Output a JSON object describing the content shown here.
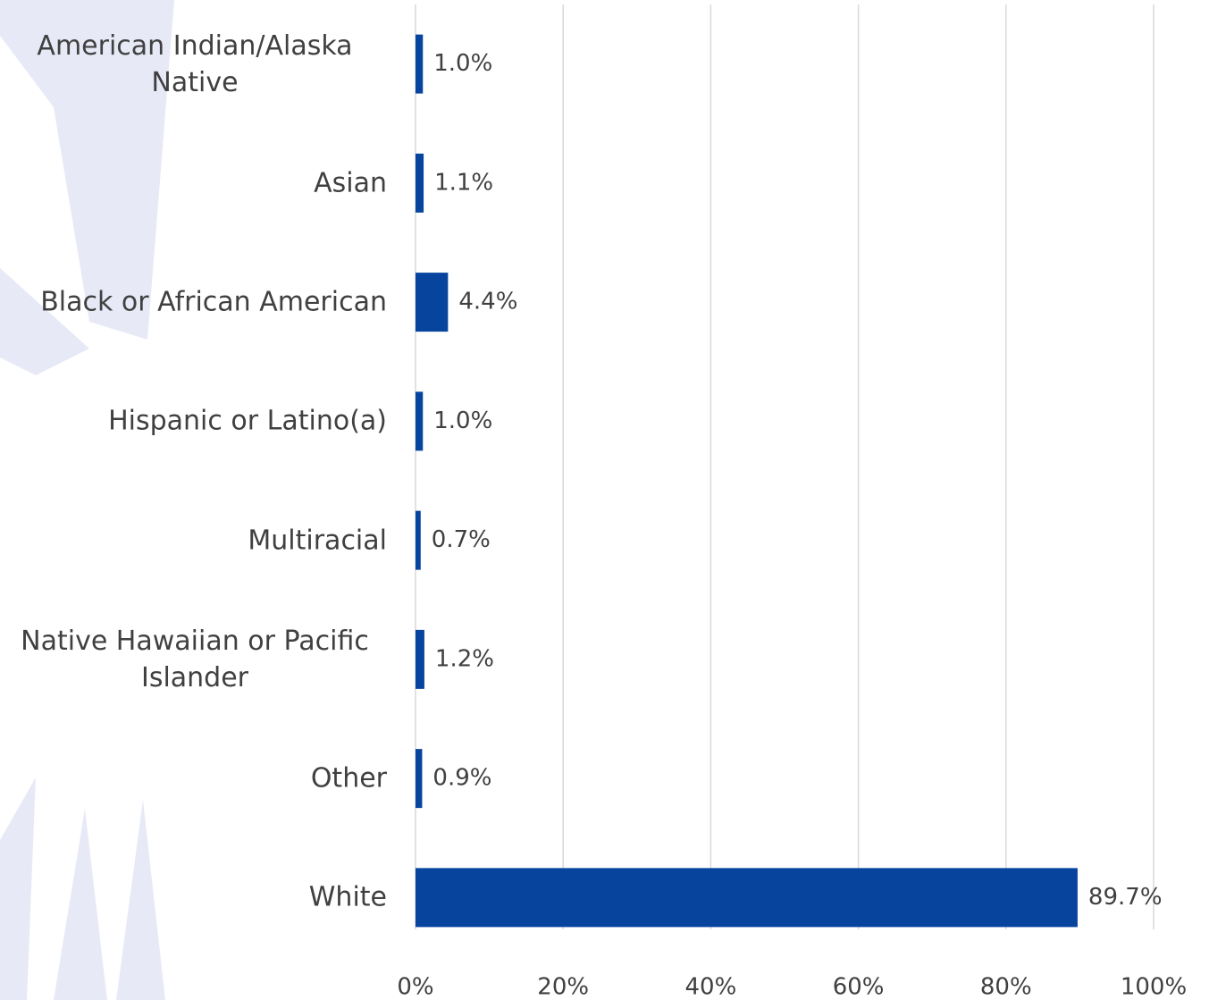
{
  "chart_data": {
    "type": "barh",
    "categories": [
      "American Indian/Alaska Native",
      "Asian",
      "Black or African American",
      "Hispanic or Latino(a)",
      "Multiracial",
      "Native Hawaiian or Pacific Islander",
      "Other",
      "White"
    ],
    "values": [
      1.0,
      1.1,
      4.4,
      1.0,
      0.7,
      1.2,
      0.9,
      89.7
    ],
    "value_labels": [
      "1.0%",
      "1.1%",
      "4.4%",
      "1.0%",
      "0.7%",
      "1.2%",
      "0.9%",
      "89.7%"
    ],
    "color": "#06449e",
    "xlim": [
      0,
      100
    ],
    "xticks": [
      {
        "value": 0,
        "label": "0%"
      },
      {
        "value": 20,
        "label": "20%"
      },
      {
        "value": 40,
        "label": "40%"
      },
      {
        "value": 60,
        "label": "60%"
      },
      {
        "value": 80,
        "label": "80%"
      },
      {
        "value": 100,
        "label": "100%"
      }
    ],
    "grid": true
  }
}
